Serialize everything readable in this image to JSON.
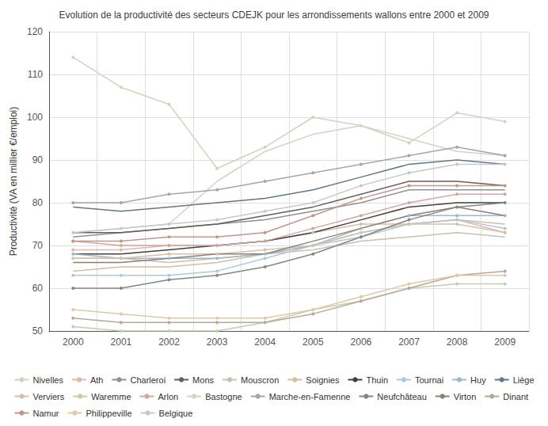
{
  "chart_data": {
    "type": "line",
    "title": "Evolution de la productivité des secteurs CDEJK pour les arrondissements wallons entre 2000 et 2009",
    "ylabel": "Productivité (VA en millier €/emploi)",
    "categories": [
      2000,
      2001,
      2002,
      2003,
      2004,
      2005,
      2006,
      2007,
      2008,
      2009
    ],
    "ylim": [
      50,
      120
    ],
    "yticks": [
      50,
      60,
      70,
      80,
      90,
      100,
      110,
      120
    ],
    "grid": true,
    "legend": "bottom",
    "series": [
      {
        "name": "Nivelles",
        "color": "#d8d0c8",
        "marker": "none",
        "values": [
          73,
          74,
          75,
          85,
          92,
          96,
          98,
          95,
          92,
          91
        ]
      },
      {
        "name": "Ath",
        "color": "#e0b8a8",
        "marker": "point",
        "values": [
          69,
          69,
          70,
          70,
          71,
          73,
          75,
          75,
          76,
          73
        ]
      },
      {
        "name": "Charleroi",
        "color": "#909090",
        "marker": "none",
        "values": [
          72,
          73,
          74,
          75,
          76,
          78,
          80,
          83,
          83,
          83
        ]
      },
      {
        "name": "Mons",
        "color": "#606060",
        "marker": "none",
        "values": [
          73,
          73,
          74,
          75,
          77,
          79,
          82,
          85,
          85,
          84
        ]
      },
      {
        "name": "Mouscron",
        "color": "#c8c0b0",
        "marker": "none",
        "values": [
          67,
          67,
          66,
          67,
          68,
          69,
          71,
          72,
          73,
          72
        ]
      },
      {
        "name": "Soignies",
        "color": "#d0c0a0",
        "marker": "none",
        "values": [
          64,
          65,
          65,
          66,
          68,
          70,
          73,
          75,
          76,
          75
        ]
      },
      {
        "name": "Thuin",
        "color": "#404040",
        "marker": "none",
        "values": [
          68,
          68,
          69,
          70,
          71,
          73,
          76,
          79,
          80,
          80
        ]
      },
      {
        "name": "Tournai",
        "color": "#b0c8d8",
        "marker": "point",
        "values": [
          63,
          63,
          63,
          64,
          67,
          70,
          72,
          75,
          76,
          74
        ]
      },
      {
        "name": "Huy",
        "color": "#a0b8c8",
        "marker": "point",
        "values": [
          68,
          67,
          67,
          67,
          68,
          70,
          74,
          77,
          77,
          77
        ]
      },
      {
        "name": "Liège",
        "color": "#607888",
        "marker": "none",
        "values": [
          79,
          78,
          79,
          80,
          81,
          83,
          86,
          89,
          90,
          89
        ]
      },
      {
        "name": "Verviers",
        "color": "#d8c0a8",
        "marker": "point",
        "values": [
          67,
          67,
          68,
          68,
          69,
          70,
          73,
          75,
          75,
          73
        ]
      },
      {
        "name": "Waremme",
        "color": "#c0d0a8",
        "marker": "point",
        "values": [
          51,
          50,
          50,
          50,
          52,
          55,
          57,
          60,
          61,
          61
        ]
      },
      {
        "name": "Arlon",
        "color": "#d0a8a0",
        "marker": "point",
        "values": [
          71,
          70,
          70,
          70,
          71,
          74,
          77,
          80,
          82,
          82
        ]
      },
      {
        "name": "Bastogne",
        "color": "#d8d0c0",
        "marker": "point",
        "values": [
          114,
          107,
          103,
          88,
          93,
          100,
          98,
          94,
          101,
          99
        ]
      },
      {
        "name": "Marche-en-Famenne",
        "color": "#a0a8a8",
        "marker": "point",
        "values": [
          80,
          80,
          82,
          83,
          85,
          87,
          89,
          91,
          93,
          91
        ]
      },
      {
        "name": "Neufchâteau",
        "color": "#808888",
        "marker": "point",
        "values": [
          60,
          60,
          62,
          63,
          65,
          68,
          72,
          76,
          79,
          80
        ]
      },
      {
        "name": "Virton",
        "color": "#888078",
        "marker": "none",
        "values": [
          66,
          66,
          67,
          68,
          68,
          71,
          74,
          77,
          79,
          77
        ]
      },
      {
        "name": "Dinant",
        "color": "#b8a898",
        "marker": "point",
        "values": [
          53,
          52,
          52,
          52,
          52,
          54,
          57,
          60,
          63,
          64
        ]
      },
      {
        "name": "Namur",
        "color": "#c09888",
        "marker": "point",
        "values": [
          71,
          71,
          72,
          72,
          73,
          77,
          81,
          84,
          84,
          84
        ]
      },
      {
        "name": "Philippeville",
        "color": "#e0c8a8",
        "marker": "point",
        "values": [
          55,
          54,
          53,
          53,
          53,
          55,
          58,
          61,
          63,
          63
        ]
      },
      {
        "name": "Belgique",
        "color": "#c8c8c8",
        "marker": "point",
        "values": [
          73,
          74,
          75,
          76,
          78,
          80,
          84,
          87,
          89,
          89
        ]
      }
    ]
  }
}
